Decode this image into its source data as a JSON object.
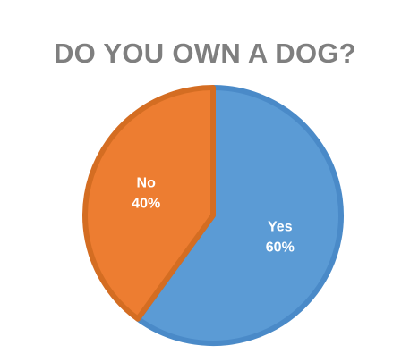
{
  "chart_data": {
    "type": "pie",
    "title": "DO YOU OWN A DOG?",
    "categories": [
      "Yes",
      "No"
    ],
    "values": [
      60,
      40
    ],
    "percent_labels": [
      "60%",
      "40%"
    ],
    "colors": [
      "#5b9bd5",
      "#ed7d31"
    ],
    "border_colors": [
      "#4a8ac8",
      "#d46d22"
    ],
    "legend": "none",
    "start_angle_deg": 0,
    "direction": "clockwise"
  }
}
